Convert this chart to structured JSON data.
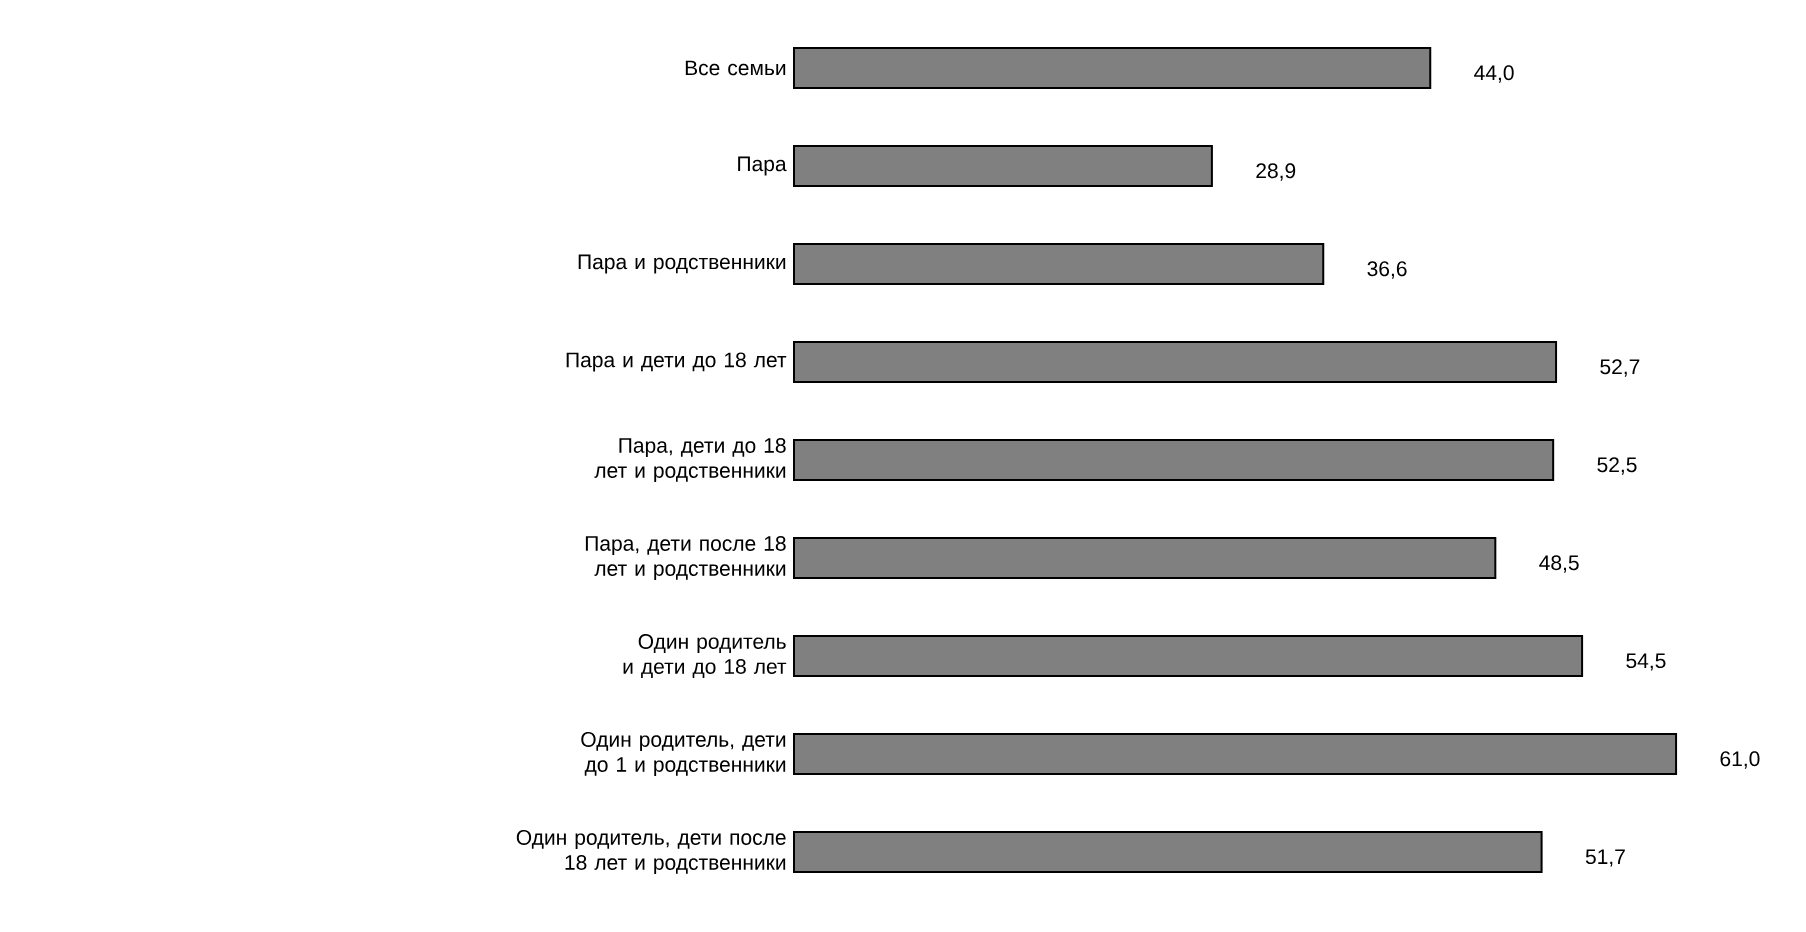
{
  "chart_data": {
    "type": "bar",
    "orientation": "horizontal",
    "tick_labels": "y",
    "color": "#808080",
    "categories": [
      "Все семьи",
      "Пара",
      "Пара и родственники",
      "Пара и дети до 18 лет",
      "Пара, дети до 18 лет и родственники",
      "Пара, дети после 18 лет и родственники",
      "Один родитель и дети до 18 лет",
      "Один родитель, дети до 1 и родственники",
      "Один родитель, дети после 18 лет и родственники"
    ],
    "values": [
      44.0,
      28.9,
      36.6,
      52.7,
      52.5,
      48.5,
      54.5,
      61.0,
      51.7
    ],
    "value_labels": [
      "44,0",
      "28,9",
      "36,6",
      "52,7",
      "52,5",
      "48,5",
      "54,5",
      "61,0",
      "51,7"
    ]
  }
}
